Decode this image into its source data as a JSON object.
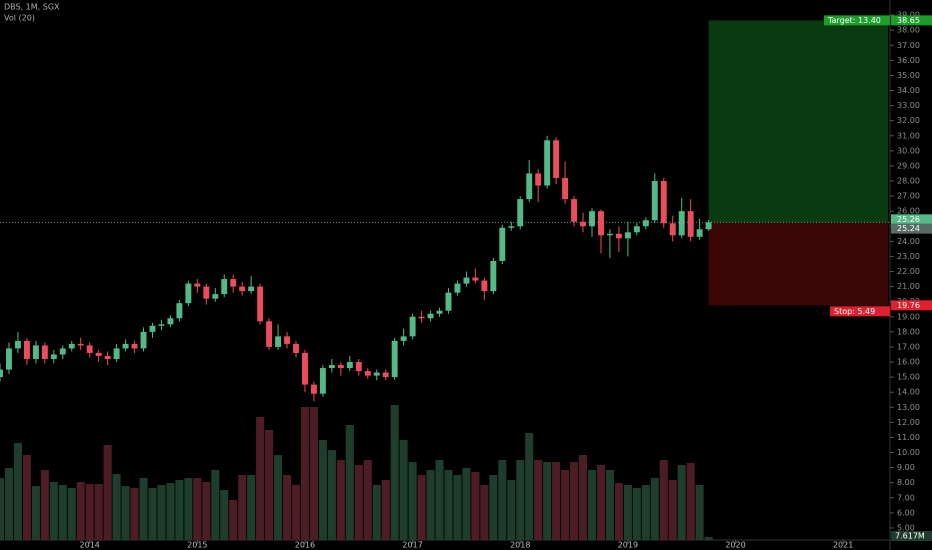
{
  "chart_data": {
    "type": "candlestick",
    "title": "DBS, 1M, SGX",
    "volume_title": "Vol (20)",
    "x": [
      "2013-03",
      "2013-04",
      "2013-05",
      "2013-06",
      "2013-07",
      "2013-08",
      "2013-09",
      "2013-10",
      "2013-11",
      "2013-12",
      "2014-01",
      "2014-02",
      "2014-03",
      "2014-04",
      "2014-05",
      "2014-06",
      "2014-07",
      "2014-08",
      "2014-09",
      "2014-10",
      "2014-11",
      "2014-12",
      "2015-01",
      "2015-02",
      "2015-03",
      "2015-04",
      "2015-05",
      "2015-06",
      "2015-07",
      "2015-08",
      "2015-09",
      "2015-10",
      "2015-11",
      "2015-12",
      "2016-01",
      "2016-02",
      "2016-03",
      "2016-04",
      "2016-05",
      "2016-06",
      "2016-07",
      "2016-08",
      "2016-09",
      "2016-10",
      "2016-11",
      "2016-12",
      "2017-01",
      "2017-02",
      "2017-03",
      "2017-04",
      "2017-05",
      "2017-06",
      "2017-07",
      "2017-08",
      "2017-09",
      "2017-10",
      "2017-11",
      "2017-12",
      "2018-01",
      "2018-02",
      "2018-03",
      "2018-04",
      "2018-05",
      "2018-06",
      "2018-07",
      "2018-08",
      "2018-09",
      "2018-10",
      "2018-11",
      "2018-12",
      "2019-01",
      "2019-02",
      "2019-03",
      "2019-04",
      "2019-05",
      "2019-06",
      "2019-07",
      "2019-08",
      "2019-09",
      "2019-10"
    ],
    "open": [
      15.0,
      15.5,
      16.9,
      17.4,
      16.2,
      17.1,
      16.2,
      16.5,
      16.9,
      17.2,
      17.1,
      16.6,
      16.4,
      16.2,
      16.9,
      17.2,
      16.9,
      18.0,
      18.4,
      18.5,
      18.9,
      19.9,
      21.2,
      21.0,
      20.2,
      20.5,
      21.5,
      21.0,
      20.7,
      21.0,
      18.7,
      17.0,
      17.7,
      17.2,
      16.6,
      14.5,
      13.9,
      15.6,
      15.8,
      15.6,
      16.0,
      15.4,
      15.1,
      15.3,
      15.0,
      17.4,
      17.7,
      19.0,
      18.9,
      19.2,
      19.4,
      20.6,
      21.2,
      21.6,
      21.4,
      20.7,
      22.7,
      24.9,
      25.0,
      26.8,
      28.5,
      27.7,
      30.7,
      28.2,
      26.8,
      25.3,
      25.0,
      26.0,
      24.4,
      24.5,
      24.2,
      24.6,
      25.0,
      25.4,
      28.0,
      25.2,
      24.4,
      26.0,
      24.3,
      24.8
    ],
    "high": [
      15.9,
      17.3,
      18.0,
      17.6,
      17.4,
      17.3,
      16.8,
      17.1,
      17.4,
      17.6,
      17.3,
      16.8,
      16.7,
      17.2,
      17.5,
      17.4,
      18.3,
      18.6,
      18.8,
      19.1,
      20.1,
      21.4,
      21.5,
      21.2,
      20.9,
      21.8,
      21.8,
      21.3,
      21.7,
      21.2,
      18.9,
      18.5,
      18.0,
      17.4,
      16.8,
      14.7,
      15.8,
      16.2,
      16.0,
      16.4,
      16.2,
      15.6,
      15.5,
      15.5,
      17.6,
      18.2,
      19.2,
      19.4,
      19.4,
      19.6,
      20.9,
      21.4,
      22.0,
      22.2,
      21.6,
      22.9,
      25.1,
      25.3,
      27.0,
      29.4,
      28.8,
      31.0,
      30.9,
      29.3,
      27.0,
      25.9,
      26.2,
      26.1,
      24.8,
      25.0,
      25.3,
      25.2,
      25.6,
      28.5,
      28.2,
      25.7,
      26.9,
      26.8,
      25.5,
      25.4
    ],
    "low": [
      14.7,
      15.2,
      16.6,
      15.8,
      15.9,
      15.9,
      15.9,
      16.2,
      16.7,
      16.8,
      16.3,
      16.0,
      15.8,
      16.0,
      16.7,
      16.6,
      16.7,
      17.6,
      18.1,
      18.3,
      18.7,
      19.7,
      20.6,
      19.8,
      20.0,
      20.3,
      20.6,
      20.4,
      20.5,
      18.5,
      16.8,
      16.8,
      16.9,
      16.3,
      14.0,
      13.4,
      13.7,
      15.3,
      15.1,
      15.4,
      15.1,
      14.9,
      14.8,
      14.8,
      14.8,
      17.1,
      17.5,
      18.6,
      18.7,
      19.0,
      19.2,
      20.4,
      21.0,
      21.2,
      20.1,
      20.5,
      22.5,
      24.7,
      24.8,
      26.6,
      26.6,
      27.5,
      27.8,
      26.5,
      25.0,
      24.6,
      24.3,
      23.2,
      22.9,
      23.3,
      23.0,
      24.4,
      24.8,
      25.2,
      24.9,
      24.0,
      24.2,
      24.0,
      24.1,
      24.7
    ],
    "close": [
      15.5,
      16.9,
      17.4,
      16.2,
      17.1,
      16.2,
      16.5,
      16.9,
      17.2,
      17.1,
      16.6,
      16.4,
      16.2,
      16.9,
      17.2,
      16.9,
      18.0,
      18.4,
      18.5,
      18.9,
      19.9,
      21.2,
      21.0,
      20.2,
      20.5,
      21.5,
      21.0,
      20.7,
      21.0,
      18.7,
      17.0,
      17.7,
      17.2,
      16.6,
      14.5,
      13.9,
      15.6,
      15.8,
      15.6,
      16.0,
      15.4,
      15.1,
      15.3,
      15.0,
      17.4,
      17.7,
      19.0,
      18.9,
      19.2,
      19.4,
      20.6,
      21.2,
      21.6,
      21.4,
      20.7,
      22.7,
      24.9,
      25.0,
      26.8,
      28.5,
      27.7,
      30.7,
      28.2,
      26.8,
      25.3,
      25.0,
      26.0,
      24.4,
      24.5,
      24.2,
      24.6,
      25.0,
      25.4,
      28.0,
      25.2,
      24.4,
      26.0,
      24.3,
      24.8,
      25.26
    ],
    "volume": [
      155,
      180,
      242.5,
      212.5,
      135,
      175,
      145,
      137.5,
      130,
      145,
      140,
      140,
      237.5,
      165,
      135,
      130,
      155,
      130,
      137.5,
      142.5,
      150,
      155,
      155,
      145,
      175,
      125,
      100,
      162.5,
      162.5,
      307.5,
      275,
      212.5,
      162.5,
      137.5,
      332.5,
      332.5,
      250,
      225,
      200,
      287.5,
      187.5,
      200,
      137.5,
      150,
      337.5,
      250,
      195,
      162.5,
      175,
      200,
      175,
      162.5,
      180,
      170,
      137.5,
      162.5,
      200,
      150,
      200,
      267.5,
      200,
      195,
      195,
      175,
      195,
      212.5,
      175,
      187.5,
      175,
      142.5,
      137.5,
      130,
      137.5,
      155,
      200,
      150,
      187.5,
      192.5,
      137.5,
      7.617
    ],
    "volume_value_labels": [
      null,
      null,
      null,
      null,
      null,
      null,
      null,
      null,
      null,
      null,
      null,
      null,
      null,
      null,
      null,
      null,
      null,
      null,
      null,
      null,
      null,
      null,
      null,
      null,
      null,
      null,
      null,
      null,
      null,
      null,
      null,
      null,
      null,
      null,
      null,
      null,
      null,
      null,
      null,
      null,
      null,
      null,
      null,
      null,
      null,
      null,
      null,
      null,
      null,
      null,
      null,
      null,
      null,
      null,
      null,
      null,
      null,
      null,
      null,
      null,
      null,
      null,
      null,
      null,
      null,
      null,
      null,
      null,
      null,
      null,
      null,
      null,
      null,
      null,
      null,
      null,
      null,
      null,
      null,
      "7.617M"
    ],
    "up_color": "#53b987",
    "down_color": "#eb4d5c",
    "volume_up_color": "#1e3d2d",
    "volume_down_color": "#4d1d25",
    "xlim": [
      "2013-03",
      "2021-06"
    ],
    "xticks": [
      2014,
      2015,
      2016,
      2017,
      2018,
      2019,
      2020,
      2021
    ],
    "ylim": [
      4.2,
      40.0
    ],
    "yticks": [
      {
        "value": 5,
        "label": "5.00"
      },
      {
        "value": 6,
        "label": "6.00"
      },
      {
        "value": 7,
        "label": "7.00"
      },
      {
        "value": 8,
        "label": "8.00"
      },
      {
        "value": 9,
        "label": "9.00"
      },
      {
        "value": 10,
        "label": "10.00"
      },
      {
        "value": 11,
        "label": "11.00"
      },
      {
        "value": 12,
        "label": "12.00"
      },
      {
        "value": 13,
        "label": "13.00"
      },
      {
        "value": 14,
        "label": "14.00"
      },
      {
        "value": 15,
        "label": "15.00"
      },
      {
        "value": 16,
        "label": "16.00"
      },
      {
        "value": 17,
        "label": "17.00"
      },
      {
        "value": 18,
        "label": "18.00"
      },
      {
        "value": 19,
        "label": "19.00"
      },
      {
        "value": 20,
        "label": "20.00"
      },
      {
        "value": 21,
        "label": "21.00"
      },
      {
        "value": 22,
        "label": "22.00"
      },
      {
        "value": 23,
        "label": "23.00"
      },
      {
        "value": 24,
        "label": "24.00"
      },
      {
        "value": 25,
        "label": "25.00"
      },
      {
        "value": 26,
        "label": "26.00"
      },
      {
        "value": 27,
        "label": "27.00"
      },
      {
        "value": 28,
        "label": "28.00"
      },
      {
        "value": 29,
        "label": "29.00"
      },
      {
        "value": 30,
        "label": "30.00"
      },
      {
        "value": 31,
        "label": "31.00"
      },
      {
        "value": 32,
        "label": "32.00"
      },
      {
        "value": 33,
        "label": "33.00"
      },
      {
        "value": 34,
        "label": "34.00"
      },
      {
        "value": 35,
        "label": "35.00"
      },
      {
        "value": 36,
        "label": "36.00"
      },
      {
        "value": 37,
        "label": "37.00"
      },
      {
        "value": 38,
        "label": "38.00"
      },
      {
        "value": 39,
        "label": "39.00"
      }
    ],
    "last_price": {
      "value": 25.26,
      "label": "25.26"
    },
    "position": {
      "start": "2019-10",
      "entry": {
        "value": 25.24,
        "label": "25.24"
      },
      "target": {
        "value": 38.65,
        "label": "38.65",
        "text": "Target: 13.40"
      },
      "stop": {
        "value": 19.76,
        "label": "19.76",
        "text": "Stop: 5.49"
      },
      "profit_color": "#0a3a10",
      "loss_color": "#3a0606"
    }
  }
}
